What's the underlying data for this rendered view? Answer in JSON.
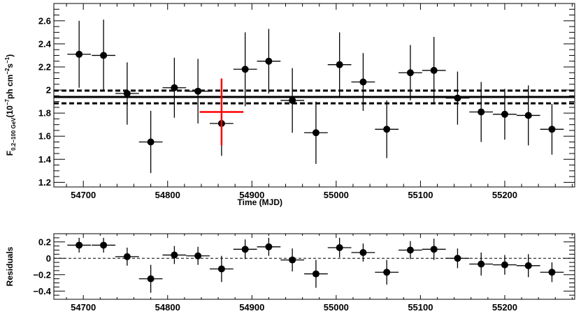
{
  "chart_data": [
    {
      "type": "scatter",
      "panel": "flux",
      "title": "",
      "xlabel": "Time (MJD)",
      "ylabel_main": "F",
      "ylabel_sub": "0.2−100 GeV",
      "ylabel_unit_open": "(10",
      "ylabel_unit_exp1": "−7",
      "ylabel_unit_mid": "ph cm",
      "ylabel_unit_exp2": "−2",
      "ylabel_unit_s": "s",
      "ylabel_unit_exp3": "−1",
      "ylabel_unit_close": ")",
      "xlim": [
        54665,
        55283
      ],
      "ylim": [
        1.16,
        2.75
      ],
      "xticks": [
        54700,
        54800,
        54900,
        55000,
        55100,
        55200
      ],
      "xtick_labels": [
        "54700",
        "54800",
        "54900",
        "55000",
        "55100",
        "55200"
      ],
      "yticks": [
        1.2,
        1.4,
        1.6,
        1.8,
        2.0,
        2.2,
        2.4,
        2.6
      ],
      "ytick_labels": [
        "1.2",
        "1.4",
        "1.6",
        "1.8",
        "2",
        "2.2",
        "2.4",
        "2.6"
      ],
      "series": [
        {
          "color": "#000000",
          "points": [
            {
              "x": 54695,
              "xerr": 14,
              "y": 2.31,
              "yerr": 0.29
            },
            {
              "x": 54724,
              "xerr": 14,
              "y": 2.3,
              "yerr": 0.31
            },
            {
              "x": 54752,
              "xerr": 14,
              "y": 1.97,
              "yerr": 0.27
            },
            {
              "x": 54780,
              "xerr": 14,
              "y": 1.55,
              "yerr": 0.27
            },
            {
              "x": 54808,
              "xerr": 14,
              "y": 2.02,
              "yerr": 0.26
            },
            {
              "x": 54836,
              "xerr": 14,
              "y": 1.99,
              "yerr": 0.28
            },
            {
              "x": 54864,
              "xerr": 14,
              "y": 1.71,
              "yerr": 0.28
            },
            {
              "x": 54892,
              "xerr": 14,
              "y": 2.18,
              "yerr": 0.32
            },
            {
              "x": 54920,
              "xerr": 14,
              "y": 2.25,
              "yerr": 0.28
            },
            {
              "x": 54948,
              "xerr": 14,
              "y": 1.91,
              "yerr": 0.28
            },
            {
              "x": 54976,
              "xerr": 14,
              "y": 1.63,
              "yerr": 0.27
            },
            {
              "x": 55004,
              "xerr": 14,
              "y": 2.22,
              "yerr": 0.28
            },
            {
              "x": 55032,
              "xerr": 14,
              "y": 2.07,
              "yerr": 0.25
            },
            {
              "x": 55060,
              "xerr": 14,
              "y": 1.66,
              "yerr": 0.25
            },
            {
              "x": 55088,
              "xerr": 14,
              "y": 2.15,
              "yerr": 0.24
            },
            {
              "x": 55116,
              "xerr": 14,
              "y": 2.17,
              "yerr": 0.29
            },
            {
              "x": 55144,
              "xerr": 14,
              "y": 1.93,
              "yerr": 0.23
            },
            {
              "x": 55172,
              "xerr": 14,
              "y": 1.81,
              "yerr": 0.26
            },
            {
              "x": 55200,
              "xerr": 14,
              "y": 1.79,
              "yerr": 0.22
            },
            {
              "x": 55228,
              "xerr": 14,
              "y": 1.78,
              "yerr": 0.26
            },
            {
              "x": 55256,
              "xerr": 14,
              "y": 1.66,
              "yerr": 0.22
            }
          ]
        },
        {
          "color": "#ff0000",
          "points": [
            {
              "x": 54864,
              "xerr": 26,
              "y": 1.81,
              "yerr": 0.29
            }
          ]
        }
      ],
      "reference_lines": [
        {
          "y": 1.94,
          "style": "solid",
          "color": "#000000"
        },
        {
          "y": 1.995,
          "style": "dashed",
          "color": "#000000"
        },
        {
          "y": 1.885,
          "style": "dashed",
          "color": "#000000"
        }
      ],
      "grid": false,
      "legend": "none"
    },
    {
      "type": "scatter",
      "panel": "residuals",
      "title": "",
      "xlabel": "",
      "ylabel": "Residuals",
      "xlim": [
        54665,
        55283
      ],
      "ylim": [
        -0.5,
        0.3
      ],
      "xticks": [
        54700,
        54800,
        54900,
        55000,
        55100,
        55200
      ],
      "xtick_labels": [
        "54700",
        "54800",
        "54900",
        "55000",
        "55100",
        "55200"
      ],
      "yticks": [
        -0.4,
        -0.2,
        0,
        0.2
      ],
      "ytick_labels": [
        "−0.4",
        "−0.2",
        "0",
        "0.2"
      ],
      "series": [
        {
          "color": "#000000",
          "points": [
            {
              "x": 54695,
              "xerr": 14,
              "y": 0.16,
              "yerr": 0.09
            },
            {
              "x": 54724,
              "xerr": 14,
              "y": 0.16,
              "yerr": 0.09
            },
            {
              "x": 54752,
              "xerr": 14,
              "y": 0.02,
              "yerr": 0.11
            },
            {
              "x": 54780,
              "xerr": 14,
              "y": -0.25,
              "yerr": 0.17
            },
            {
              "x": 54808,
              "xerr": 14,
              "y": 0.04,
              "yerr": 0.11
            },
            {
              "x": 54836,
              "xerr": 14,
              "y": 0.03,
              "yerr": 0.11
            },
            {
              "x": 54864,
              "xerr": 14,
              "y": -0.13,
              "yerr": 0.16
            },
            {
              "x": 54892,
              "xerr": 14,
              "y": 0.11,
              "yerr": 0.12
            },
            {
              "x": 54920,
              "xerr": 14,
              "y": 0.14,
              "yerr": 0.11
            },
            {
              "x": 54948,
              "xerr": 14,
              "y": -0.02,
              "yerr": 0.14
            },
            {
              "x": 54976,
              "xerr": 14,
              "y": -0.19,
              "yerr": 0.17
            },
            {
              "x": 55004,
              "xerr": 14,
              "y": 0.13,
              "yerr": 0.12
            },
            {
              "x": 55032,
              "xerr": 14,
              "y": 0.07,
              "yerr": 0.11
            },
            {
              "x": 55060,
              "xerr": 14,
              "y": -0.17,
              "yerr": 0.15
            },
            {
              "x": 55088,
              "xerr": 14,
              "y": 0.1,
              "yerr": 0.11
            },
            {
              "x": 55116,
              "xerr": 14,
              "y": 0.11,
              "yerr": 0.13
            },
            {
              "x": 55144,
              "xerr": 14,
              "y": 0.0,
              "yerr": 0.12
            },
            {
              "x": 55172,
              "xerr": 14,
              "y": -0.07,
              "yerr": 0.14
            },
            {
              "x": 55200,
              "xerr": 14,
              "y": -0.08,
              "yerr": 0.12
            },
            {
              "x": 55228,
              "xerr": 14,
              "y": -0.09,
              "yerr": 0.14
            },
            {
              "x": 55256,
              "xerr": 14,
              "y": -0.17,
              "yerr": 0.12
            }
          ]
        }
      ],
      "reference_lines": [
        {
          "y": 0,
          "style": "dashed",
          "color": "#000000"
        }
      ],
      "grid": false,
      "legend": "none"
    }
  ]
}
